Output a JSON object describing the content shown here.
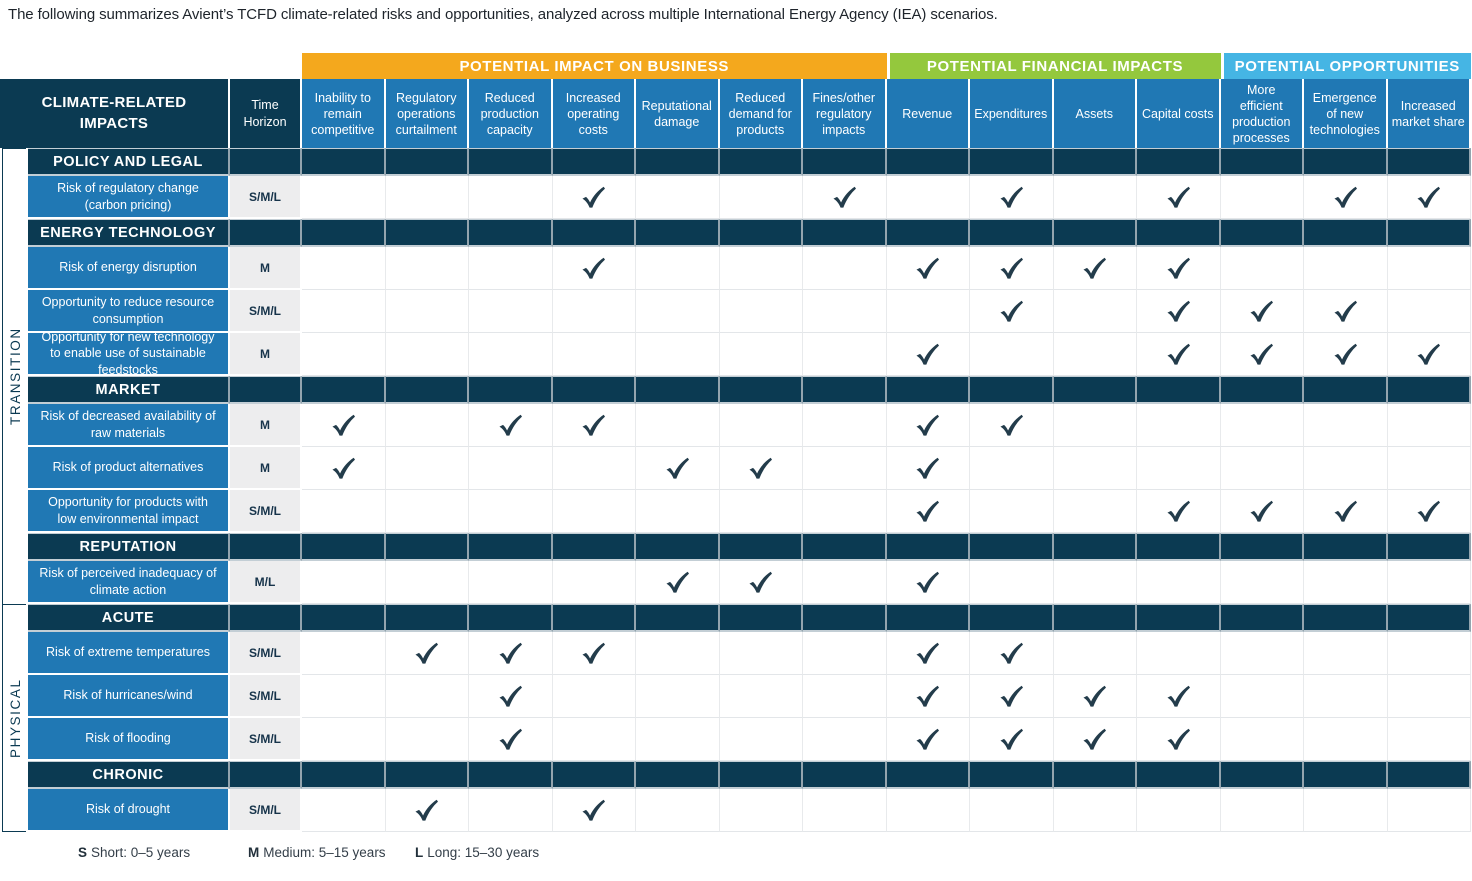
{
  "title": "The following summarizes Avient’s TCFD climate-related risks and opportunities, analyzed across multiple International Energy Agency (IEA) scenarios.",
  "colors": {
    "band_orange": "#F4A81D",
    "band_green": "#94C83D",
    "band_blue": "#45B5E4",
    "navy": "#0B3A52",
    "row_blue": "#2078B4",
    "horizon_gray": "#EDEDEE",
    "check": "#233C4B"
  },
  "table": {
    "corner_header": "CLIMATE-RELATED IMPACTS",
    "time_horizon_header": "Time Horizon",
    "groups": [
      {
        "label": "POTENTIAL IMPACT ON BUSINESS",
        "color": "#F4A81D",
        "span": 7
      },
      {
        "label": "POTENTIAL FINANCIAL IMPACTS",
        "color": "#94C83D",
        "span": 4
      },
      {
        "label": "POTENTIAL OPPORTUNITIES",
        "color": "#45B5E4",
        "span": 3
      }
    ],
    "columns": [
      "Inability to remain competitive",
      "Regulatory operations curtailment",
      "Reduced production capacity",
      "Increased operating costs",
      "Reputational damage",
      "Reduced demand for products",
      "Fines/other regulatory impacts",
      "Revenue",
      "Expenditures",
      "Assets",
      "Capital costs",
      "More efficient production processes",
      "Emergence of new technologies",
      "Increased market share"
    ],
    "zones": [
      {
        "label": "TRANSITION"
      },
      {
        "label": "PHYSICAL"
      }
    ],
    "sections": [
      {
        "label": "POLICY AND LEGAL",
        "zone": "TRANSITION",
        "rows": [
          {
            "label": "Risk of regulatory change (carbon pricing)",
            "horizon": "S/M/L",
            "checks": [
              3,
              6,
              8,
              10,
              12,
              13
            ]
          }
        ]
      },
      {
        "label": "ENERGY TECHNOLOGY",
        "zone": "TRANSITION",
        "rows": [
          {
            "label": "Risk of energy disruption",
            "horizon": "M",
            "checks": [
              3,
              7,
              8,
              9,
              10
            ]
          },
          {
            "label": "Opportunity to reduce resource consumption",
            "horizon": "S/M/L",
            "checks": [
              8,
              10,
              11,
              12
            ]
          },
          {
            "label": "Opportunity for new technology to enable use of sustainable feedstocks",
            "horizon": "M",
            "checks": [
              7,
              10,
              11,
              12,
              13
            ]
          }
        ]
      },
      {
        "label": "MARKET",
        "zone": "TRANSITION",
        "rows": [
          {
            "label": "Risk of decreased availability of raw materials",
            "horizon": "M",
            "checks": [
              0,
              2,
              3,
              7,
              8
            ]
          },
          {
            "label": "Risk of product alternatives",
            "horizon": "M",
            "checks": [
              0,
              4,
              5,
              7
            ]
          },
          {
            "label": "Opportunity for products with low environmental impact",
            "horizon": "S/M/L",
            "checks": [
              7,
              10,
              11,
              12,
              13
            ]
          }
        ]
      },
      {
        "label": "REPUTATION",
        "zone": "TRANSITION",
        "rows": [
          {
            "label": "Risk of perceived inadequacy of climate action",
            "horizon": "M/L",
            "checks": [
              4,
              5,
              7
            ]
          }
        ]
      },
      {
        "label": "ACUTE",
        "zone": "PHYSICAL",
        "rows": [
          {
            "label": "Risk of extreme temperatures",
            "horizon": "S/M/L",
            "checks": [
              1,
              2,
              3,
              7,
              8
            ]
          },
          {
            "label": "Risk of hurricanes/wind",
            "horizon": "S/M/L",
            "checks": [
              2,
              7,
              8,
              9,
              10
            ]
          },
          {
            "label": "Risk of flooding",
            "horizon": "S/M/L",
            "checks": [
              2,
              7,
              8,
              9,
              10
            ]
          }
        ]
      },
      {
        "label": "CHRONIC",
        "zone": "PHYSICAL",
        "rows": [
          {
            "label": "Risk of drought",
            "horizon": "S/M/L",
            "checks": [
              1,
              3
            ]
          }
        ]
      }
    ]
  },
  "legend": [
    {
      "key": "S",
      "text": "Short: 0–5 years"
    },
    {
      "key": "M",
      "text": "Medium: 5–15 years"
    },
    {
      "key": "L",
      "text": "Long: 15–30 years"
    }
  ]
}
